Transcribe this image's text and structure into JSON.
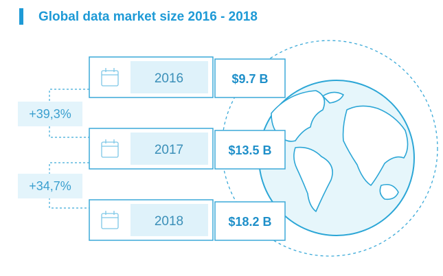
{
  "title": "Global data market size 2016 - 2018",
  "rows": [
    {
      "year": "2016",
      "value": "$9.7 B"
    },
    {
      "year": "2017",
      "value": "$13.5 B"
    },
    {
      "year": "2018",
      "value": "$18.2 B"
    }
  ],
  "growth": [
    "+39,3%",
    "+34,7%"
  ]
}
